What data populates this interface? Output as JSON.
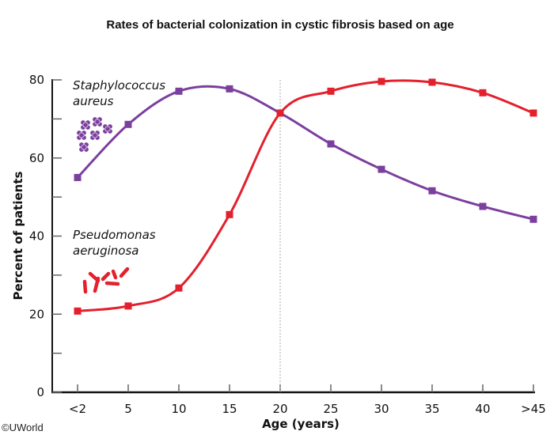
{
  "chart_data": {
    "type": "line",
    "title": "Rates of bacterial colonization in cystic fibrosis based on age",
    "xlabel": "Age (years)",
    "ylabel": "Percent of patients",
    "categories": [
      "<2",
      "5",
      "10",
      "15",
      "20",
      "25",
      "30",
      "35",
      "40",
      ">45"
    ],
    "ylim": [
      0,
      80
    ],
    "yticks": [
      0,
      20,
      40,
      60,
      80
    ],
    "yminor_ticks": [
      10,
      30,
      50,
      70
    ],
    "grid": false,
    "reference_line": {
      "category": "20",
      "style": "dotted"
    },
    "series": [
      {
        "name": "Staphylococcus aureus",
        "label_line1": "Staphylococcus",
        "label_line2": "aureus",
        "color": "#7b3f9e",
        "marker": "square",
        "values": [
          55,
          68.6,
          77.1,
          77.7,
          71.5,
          63.6,
          57.1,
          51.6,
          47.6,
          44.3
        ]
      },
      {
        "name": "Pseudomonas aeruginosa",
        "label_line1": "Pseudomonas",
        "label_line2": "aeruginosa",
        "color": "#e3202c",
        "marker": "square",
        "values": [
          20.8,
          22.1,
          26.7,
          45.5,
          71.5,
          77.1,
          79.6,
          79.4,
          76.7,
          71.5
        ]
      }
    ]
  },
  "footer": {
    "copyright": "©UWorld"
  }
}
